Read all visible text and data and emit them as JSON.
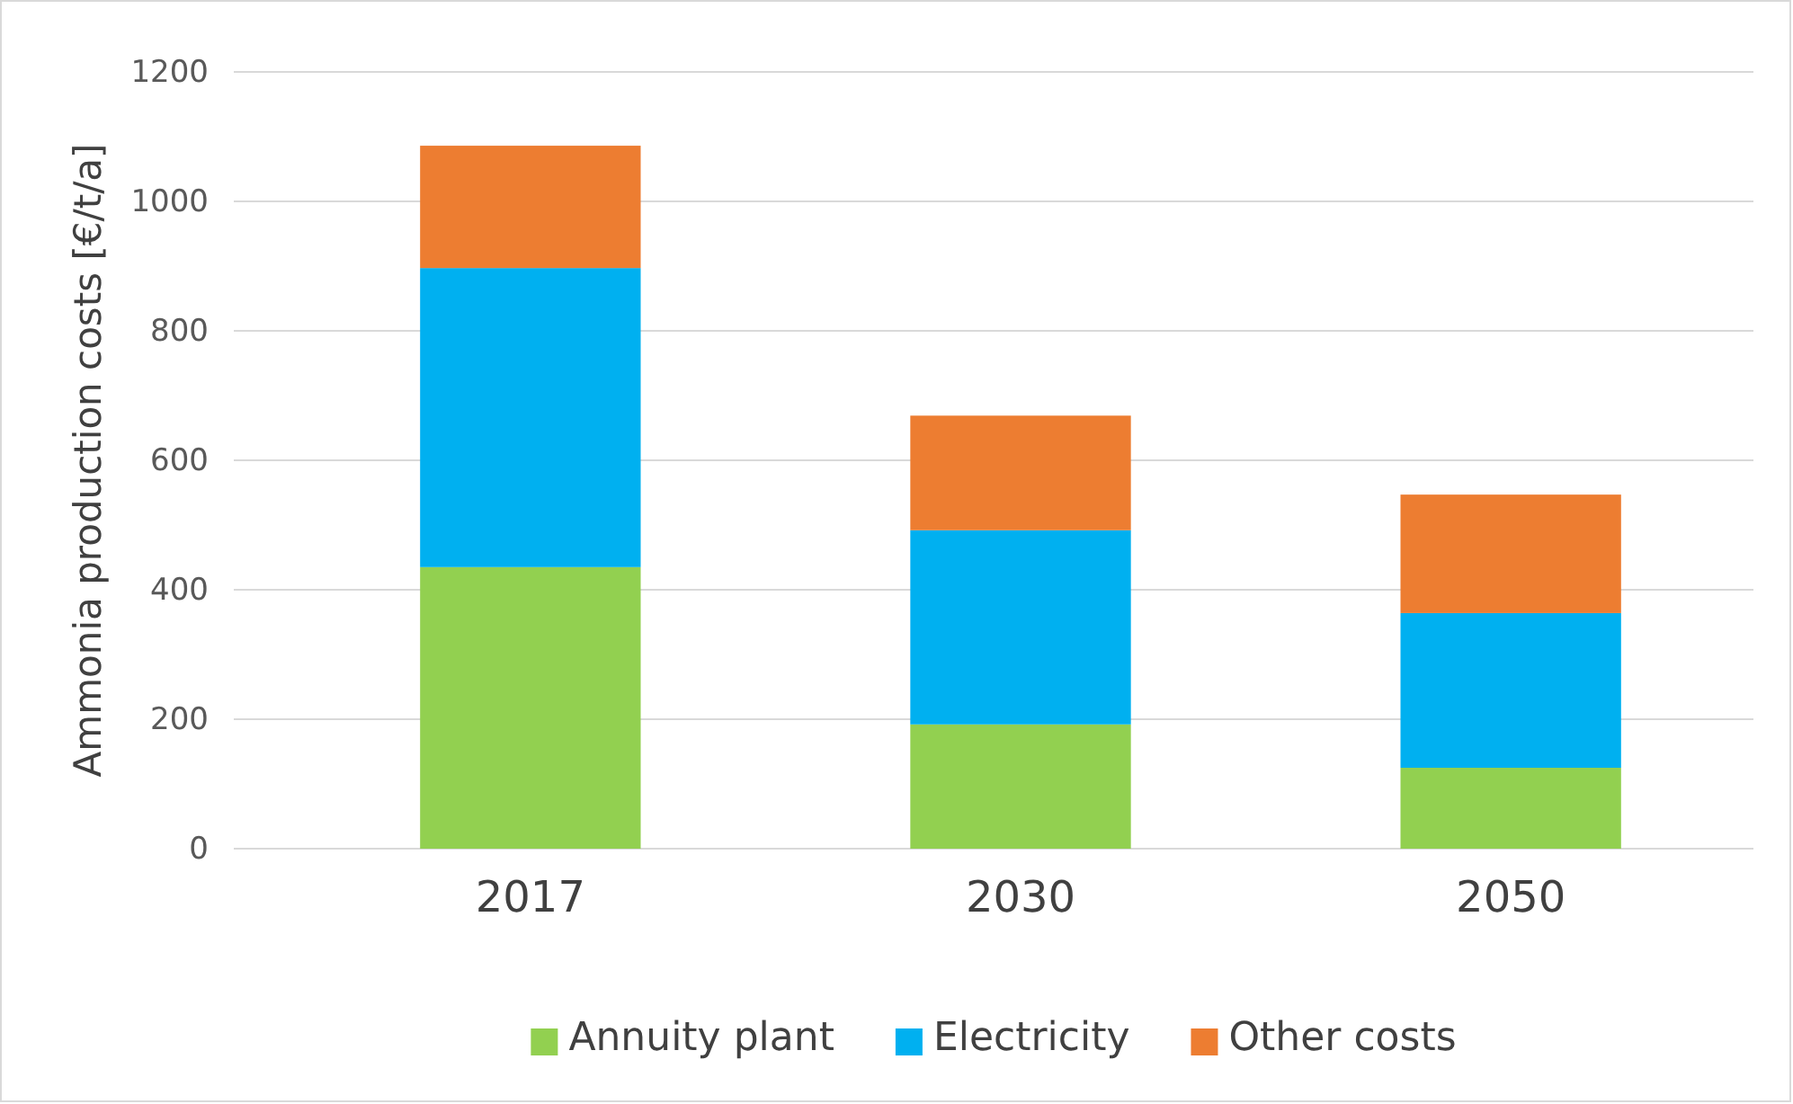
{
  "chart_data": {
    "type": "bar",
    "stacked": true,
    "ylabel": "Ammonia production costs [€/t/a]",
    "categories": [
      "2017",
      "2030",
      "2050"
    ],
    "series": [
      {
        "name": "Annuity plant",
        "color": "#92d050",
        "values": [
          435,
          192,
          125
        ]
      },
      {
        "name": "Electricity",
        "color": "#00b0f0",
        "values": [
          462,
          300,
          239
        ]
      },
      {
        "name": "Other costs",
        "color": "#ed7d31",
        "values": [
          189,
          177,
          183
        ]
      }
    ],
    "ylim": [
      0,
      1200
    ],
    "yticks": [
      0,
      200,
      400,
      600,
      800,
      1000,
      1200
    ],
    "grid": "y",
    "legend": "bottom"
  }
}
